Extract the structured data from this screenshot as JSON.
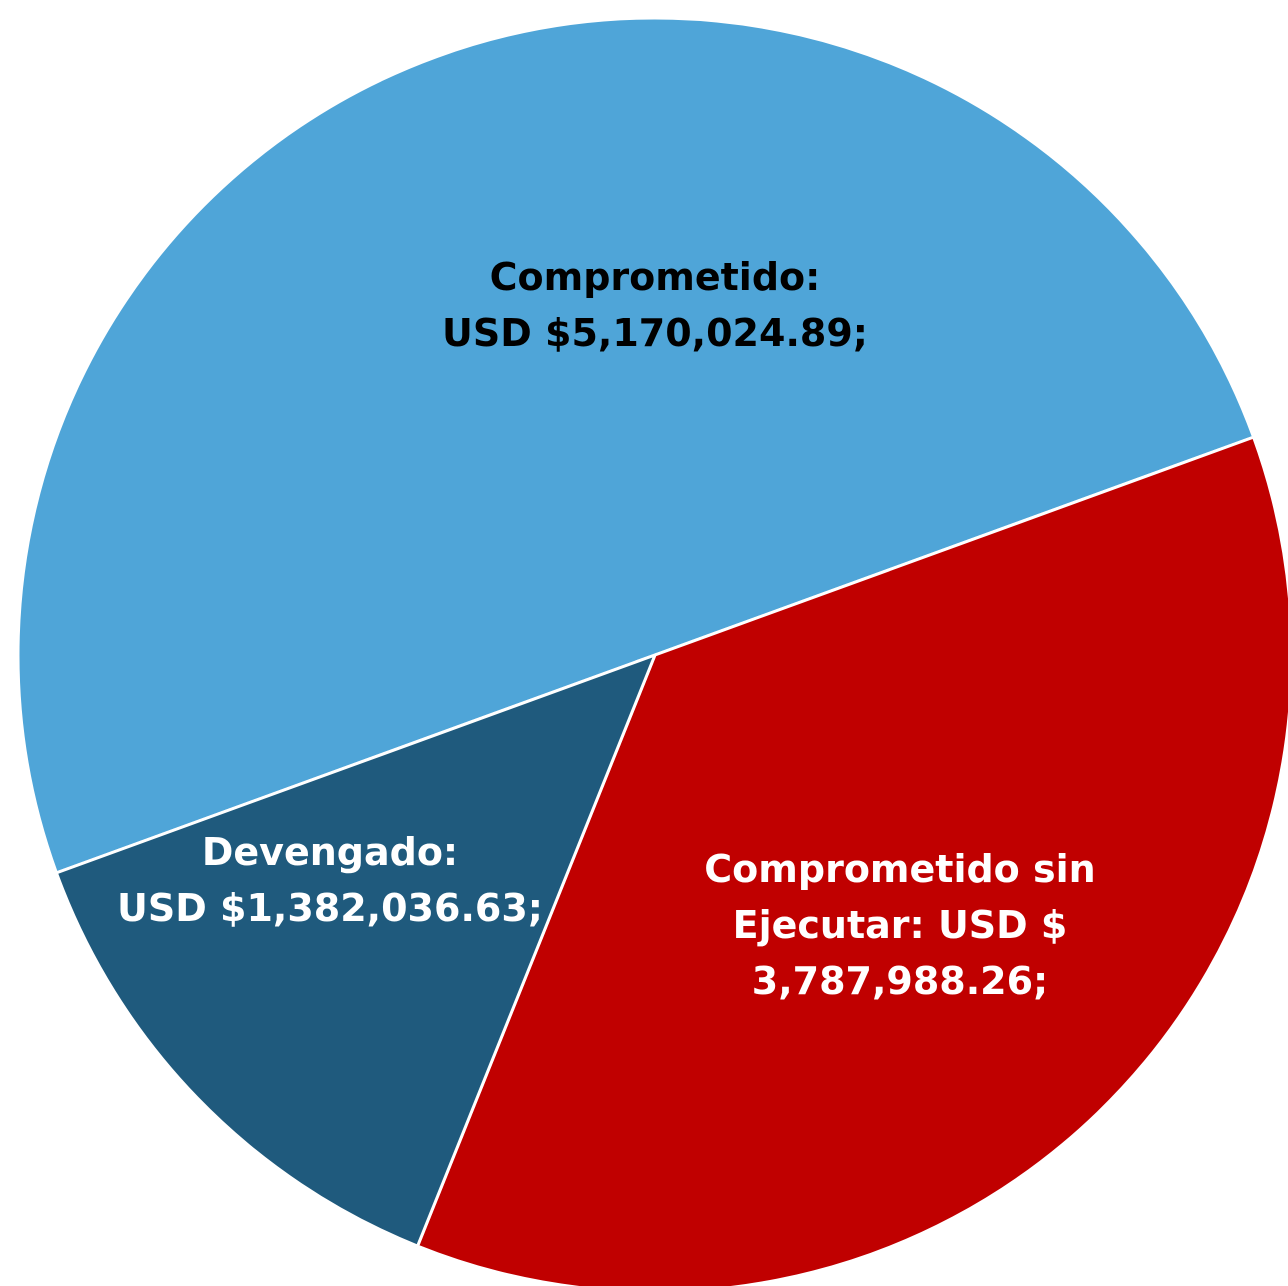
{
  "chart_data": {
    "type": "pie",
    "categories": [
      "Comprometido:",
      "Comprometido sin Ejecutar:",
      "Devengado:"
    ],
    "values": [
      5170024.89,
      3787988.26,
      1382036.63
    ],
    "value_labels": [
      "USD $5,170,024.89;",
      "USD $ 3,787,988.26;",
      "USD $1,382,036.63;"
    ],
    "colors": [
      "#4fa5d8",
      "#c00000",
      "#1f5a7d"
    ],
    "label_colors": [
      "#000000",
      "#ffffff",
      "#ffffff"
    ]
  }
}
